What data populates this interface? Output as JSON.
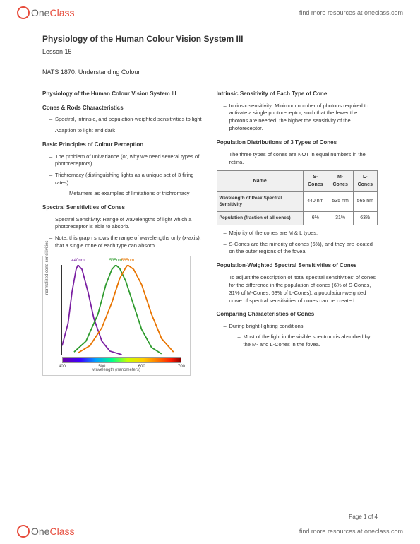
{
  "brand": {
    "one": "One",
    "class": "Class"
  },
  "resources_link": "find more resources at oneclass.com",
  "title": "Physiology of the Human Colour Vision System III",
  "lesson": "Lesson 15",
  "course": "NATS 1870: Understanding Colour",
  "left": {
    "h1": "Physiology of the Human Colour Vision System III",
    "h2": "Cones & Rods Characteristics",
    "b1": "Spectral, intrinsic, and population-weighted sensitivities to light",
    "b2": "Adaption to light and dark",
    "h3": "Basic Principles of Colour Perception",
    "b3": "The problem of univariance (or, why we need several types of photoreceptors)",
    "b4": "Trichromacy (distinguishing lights as a unique set of 3 firing rates)",
    "b4a": "Metamers as examples of limitations of trichromacy",
    "h4": "Spectral Sensitivities of Cones",
    "b5": "Spectral Sensitivity: Range of wavelengths of light which a photoreceptor is able to absorb.",
    "b6": "Note: this graph shows the range of wavelengths only (x-axis), that a single cone of each type can absorb."
  },
  "right": {
    "h1": "Intrinsic Sensitivity of Each Type of Cone",
    "b1": "Intrinsic sensitivity: Minimum number of photons required to activate a single photoreceptor, such that the fewer the photons are needed, the higher the sensitivity of the photoreceptor.",
    "h2": "Population Distributions of 3 Types of Cones",
    "b2": "The three types of cones are NOT in equal numbers in the retina.",
    "b3": "Majority of the cones are M & L types.",
    "b4": "S-Cones are the minority of cones (6%), and they are located on the outer regions of the fovea.",
    "h3": "Population-Weighted Spectral Sensitivities of Cones",
    "b5": "To adjust the description of 'total spectral sensitivities' of cones for the difference in the population of cones (6% of S-Cones, 31% of M-Cones, 63% of L-Cones), a population-weighted curve of spectral sensitivities of cones can be created.",
    "h4": "Comparing Characteristics of Cones",
    "b6": "During bright-lighting conditions:",
    "b6a": "Most of the light in the visible spectrum is absorbed by the M- and L-Cones in the fovea."
  },
  "table": {
    "headers": {
      "name": "Name",
      "s": "S-Cones",
      "m": "M-Cones",
      "l": "L-Cones"
    },
    "rows": [
      {
        "label": "Wavelength of Peak Spectral Sensitivity",
        "s": "440 nm",
        "m": "535 nm",
        "l": "565 nm"
      },
      {
        "label": "Population (fraction of all cones)",
        "s": "6%",
        "m": "31%",
        "l": "63%"
      }
    ]
  },
  "chart": {
    "type": "line",
    "xlabel": "wavelength (nanometers)",
    "ylabel": "normalized cone sensitivities",
    "xlim": [
      400,
      700
    ],
    "ylim": [
      0,
      1.0
    ],
    "xticks": [
      400,
      500,
      600,
      700
    ],
    "peak_labels": [
      {
        "text": "440nm",
        "x": 440,
        "color": "#7a1fa2"
      },
      {
        "text": "535nm",
        "x": 535,
        "color": "#2e9b2e"
      },
      {
        "text": "565nm",
        "x": 565,
        "color": "#e87400"
      }
    ],
    "series": [
      {
        "name": "S-cone",
        "color": "#7a1fa2",
        "width": 1.8,
        "points": [
          [
            400,
            0.1
          ],
          [
            415,
            0.35
          ],
          [
            425,
            0.7
          ],
          [
            435,
            0.95
          ],
          [
            440,
            1.0
          ],
          [
            450,
            0.95
          ],
          [
            465,
            0.7
          ],
          [
            480,
            0.4
          ],
          [
            500,
            0.15
          ],
          [
            520,
            0.04
          ],
          [
            550,
            0.0
          ]
        ]
      },
      {
        "name": "M-cone",
        "color": "#2e9b2e",
        "width": 1.8,
        "points": [
          [
            430,
            0.03
          ],
          [
            460,
            0.15
          ],
          [
            490,
            0.45
          ],
          [
            510,
            0.78
          ],
          [
            525,
            0.95
          ],
          [
            535,
            1.0
          ],
          [
            545,
            0.96
          ],
          [
            560,
            0.82
          ],
          [
            580,
            0.55
          ],
          [
            600,
            0.28
          ],
          [
            625,
            0.08
          ],
          [
            650,
            0.01
          ]
        ]
      },
      {
        "name": "L-cone",
        "color": "#e87400",
        "width": 1.8,
        "points": [
          [
            440,
            0.02
          ],
          [
            470,
            0.1
          ],
          [
            500,
            0.3
          ],
          [
            525,
            0.58
          ],
          [
            545,
            0.85
          ],
          [
            560,
            0.97
          ],
          [
            565,
            1.0
          ],
          [
            580,
            0.95
          ],
          [
            600,
            0.78
          ],
          [
            625,
            0.45
          ],
          [
            650,
            0.18
          ],
          [
            680,
            0.03
          ]
        ]
      }
    ],
    "background_color": "#ffffff",
    "axis_color": "#333333",
    "label_fontsize": 6
  },
  "page_footer": "Page 1 of 4"
}
